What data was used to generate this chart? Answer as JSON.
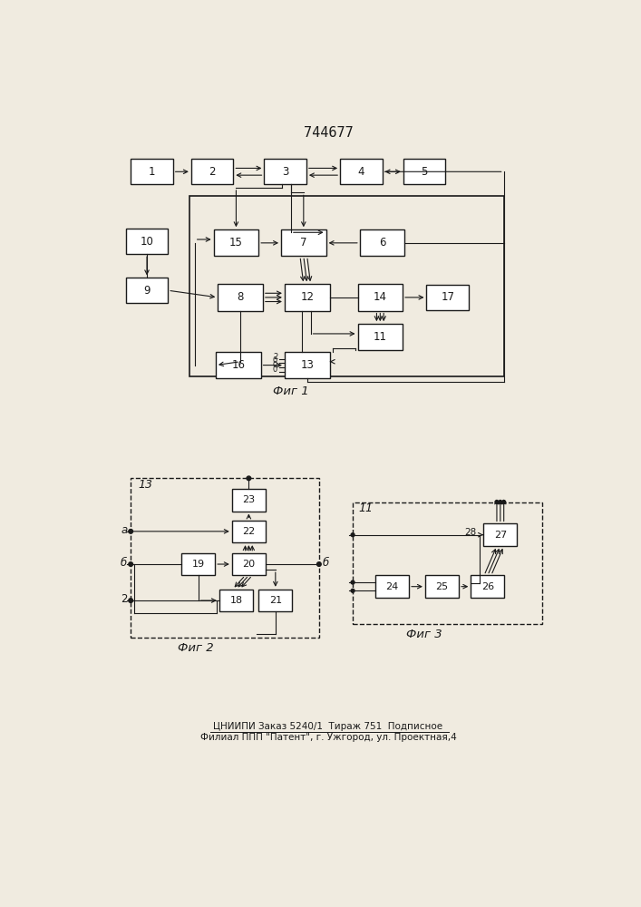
{
  "title": "744677",
  "fig1_caption": "Фиг 1",
  "fig2_caption": "Фиг 2",
  "fig3_caption": "Фиг 3",
  "footer_line1": "ЦНИИПИ Заказ 5240/1  Тираж 751  Подписное",
  "footer_line2": "Филиал ППП \"Патент\", г. Ужгород, ул. Проектная,4",
  "bg_color": "#f0ebe0",
  "box_color": "#ffffff",
  "line_color": "#1a1a1a"
}
